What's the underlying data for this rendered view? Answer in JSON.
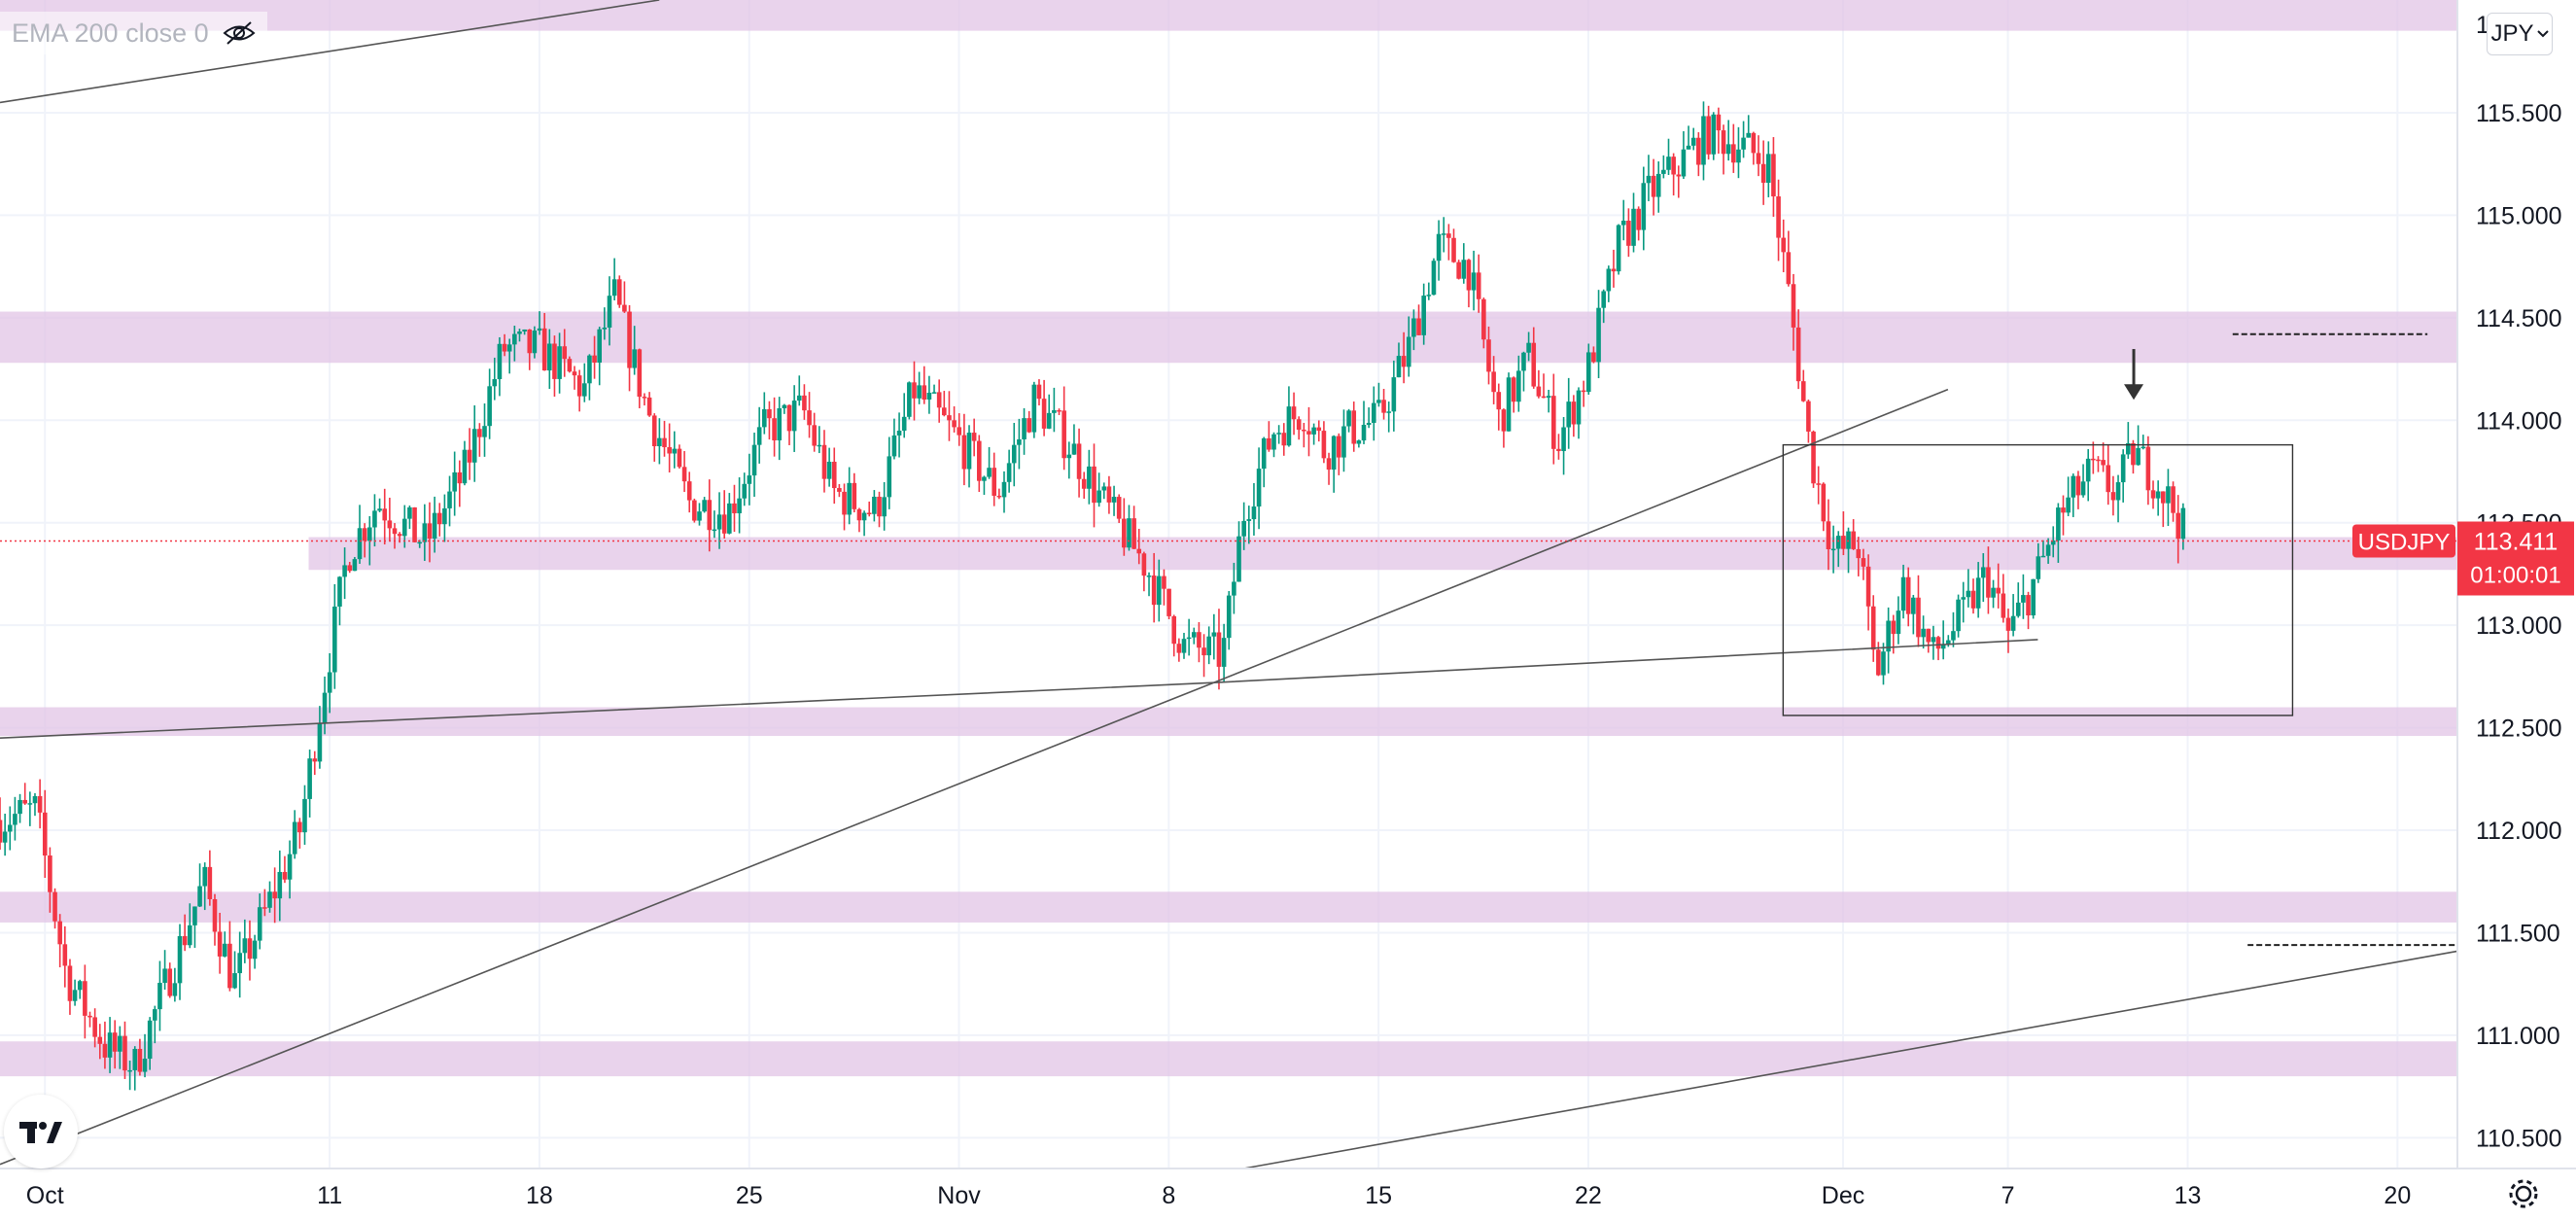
{
  "indicator": {
    "label": "EMA 200 close 0",
    "icon": "eye-crossed-icon"
  },
  "currency_button": {
    "label": "JPY",
    "icon": "chevron-down-icon"
  },
  "price_tag": {
    "symbol": "USDJPY",
    "price": "113.411",
    "countdown": "01:00:01",
    "color": "#f23645"
  },
  "colors": {
    "zone": "#e1c4e6",
    "up": "#089981",
    "down": "#f23645",
    "line": "#555555",
    "grid": "#f0f3fa"
  },
  "chart_data": {
    "type": "candlestick",
    "symbol": "USDJPY",
    "interval": "4H",
    "ylim": [
      110.35,
      116.05
    ],
    "y_ticks": [
      "115.500",
      "115.000",
      "114.500",
      "114.000",
      "113.500",
      "113.000",
      "112.500",
      "112.000",
      "111.500",
      "111.000",
      "110.500"
    ],
    "y_tick_values": [
      115.5,
      115.0,
      114.5,
      114.0,
      113.5,
      113.0,
      112.5,
      112.0,
      111.5,
      111.0,
      110.5
    ],
    "y_top_partial": "1",
    "x_ticks": [
      "Oct",
      "11",
      "18",
      "25",
      "Nov",
      "8",
      "15",
      "22",
      "Dec",
      "7",
      "13",
      "20"
    ],
    "x_tick_days": [
      1.5,
      11,
      18,
      25,
      32,
      39,
      46,
      53,
      61.5,
      67,
      73,
      80
    ],
    "x_range_days": [
      0,
      82
    ],
    "path": [
      [
        0,
        112.05
      ],
      [
        1.2,
        112.1
      ],
      [
        2.2,
        111.3
      ],
      [
        3.5,
        110.95
      ],
      [
        4.5,
        110.85
      ],
      [
        5.8,
        111.35
      ],
      [
        6.8,
        111.75
      ],
      [
        7.8,
        111.25
      ],
      [
        9,
        111.65
      ],
      [
        10,
        112.0
      ],
      [
        10.8,
        112.7
      ],
      [
        11.6,
        113.35
      ],
      [
        12.6,
        113.6
      ],
      [
        14.2,
        113.4
      ],
      [
        15.5,
        113.75
      ],
      [
        16.8,
        114.35
      ],
      [
        18,
        114.35
      ],
      [
        19.5,
        114.15
      ],
      [
        20.5,
        114.6
      ],
      [
        21.6,
        114.05
      ],
      [
        23,
        113.6
      ],
      [
        24.3,
        113.55
      ],
      [
        25.5,
        113.95
      ],
      [
        26.8,
        114.05
      ],
      [
        27.8,
        113.65
      ],
      [
        29.2,
        113.55
      ],
      [
        30.5,
        114.15
      ],
      [
        32,
        113.9
      ],
      [
        33.3,
        113.65
      ],
      [
        34.5,
        114.1
      ],
      [
        35.6,
        113.9
      ],
      [
        36.8,
        113.6
      ],
      [
        38.2,
        113.3
      ],
      [
        39.5,
        112.9
      ],
      [
        40.8,
        112.85
      ],
      [
        41.5,
        113.55
      ],
      [
        42.5,
        113.95
      ],
      [
        43.5,
        114.05
      ],
      [
        44.2,
        113.85
      ],
      [
        45,
        113.95
      ],
      [
        46,
        114.0
      ],
      [
        47,
        114.35
      ],
      [
        48,
        114.85
      ],
      [
        49,
        114.75
      ],
      [
        50,
        114.0
      ],
      [
        51,
        114.3
      ],
      [
        52,
        113.9
      ],
      [
        53,
        114.25
      ],
      [
        54,
        114.85
      ],
      [
        55,
        115.1
      ],
      [
        56,
        115.25
      ],
      [
        57,
        115.4
      ],
      [
        58,
        115.35
      ],
      [
        59,
        115.25
      ],
      [
        59.7,
        114.6
      ],
      [
        60.4,
        113.85
      ],
      [
        61.2,
        113.35
      ],
      [
        62,
        113.4
      ],
      [
        62.6,
        112.75
      ],
      [
        63.5,
        113.2
      ],
      [
        64.5,
        112.85
      ],
      [
        65.5,
        113.05
      ],
      [
        66.3,
        113.25
      ],
      [
        67,
        112.95
      ],
      [
        68,
        113.25
      ],
      [
        68.8,
        113.55
      ],
      [
        69.8,
        113.75
      ],
      [
        70.6,
        113.65
      ],
      [
        71.2,
        113.85
      ],
      [
        72,
        113.7
      ],
      [
        72.6,
        113.55
      ],
      [
        73,
        113.41
      ]
    ],
    "current_price": 113.411,
    "annotations": {
      "zones": [
        {
          "from": 115.9,
          "to": 116.12,
          "x0": 0
        },
        {
          "from": 114.28,
          "to": 114.53,
          "x0": 0
        },
        {
          "from": 113.27,
          "to": 113.43,
          "x0": 10.3
        },
        {
          "from": 112.46,
          "to": 112.6,
          "x0": 0
        },
        {
          "from": 111.55,
          "to": 111.7,
          "x0": 0
        },
        {
          "from": 110.8,
          "to": 110.97,
          "x0": 0
        }
      ],
      "trendlines": [
        [
          [
            0,
            115.55
          ],
          [
            22,
            116.05
          ]
        ],
        [
          [
            0,
            110.37
          ],
          [
            40.5,
            112.72
          ],
          [
            65,
            114.15
          ]
        ],
        [
          [
            0,
            112.45
          ],
          [
            40.5,
            112.72
          ],
          [
            68,
            112.93
          ]
        ],
        [
          [
            41.5,
            110.35
          ],
          [
            82,
            111.41
          ]
        ]
      ],
      "box": {
        "x0": 59.5,
        "x1": 76.5,
        "y0": 112.56,
        "y1": 113.88
      },
      "dashed": [
        {
          "x0": 74.5,
          "x1": 81,
          "y": 114.42
        },
        {
          "x0": 75,
          "x1": 82.5,
          "y": 111.44
        }
      ],
      "arrow": {
        "x": 71.2,
        "y_top": 114.3,
        "y_bottom": 114.1
      }
    }
  }
}
